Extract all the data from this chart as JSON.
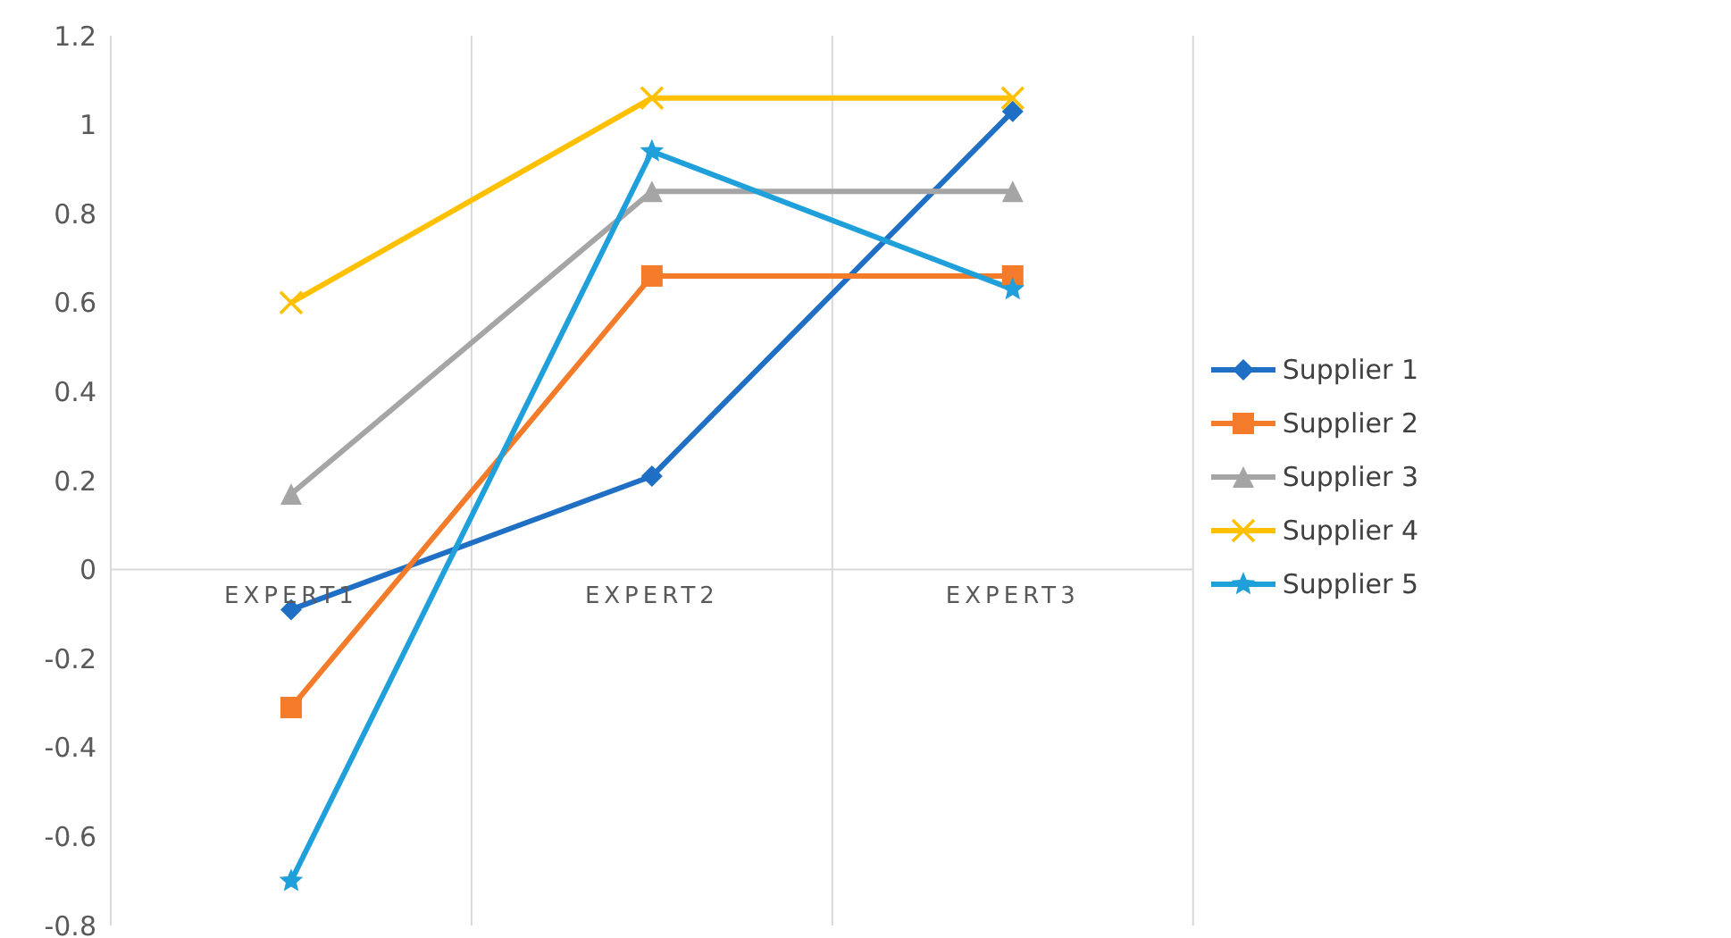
{
  "chart_data": {
    "type": "line",
    "categories": [
      "EXPERT1",
      "EXPERT2",
      "EXPERT3"
    ],
    "series": [
      {
        "name": "Supplier 1",
        "color": "#1f6fc5",
        "marker": "diamond",
        "values": [
          -0.09,
          0.21,
          1.03
        ]
      },
      {
        "name": "Supplier 2",
        "color": "#f47b2a",
        "marker": "square",
        "values": [
          -0.31,
          0.66,
          0.66
        ]
      },
      {
        "name": "Supplier 3",
        "color": "#a5a5a5",
        "marker": "triangle",
        "values": [
          0.17,
          0.85,
          0.85
        ]
      },
      {
        "name": "Supplier 4",
        "color": "#ffc000",
        "marker": "cross",
        "values": [
          0.6,
          1.06,
          1.06
        ]
      },
      {
        "name": "Supplier 5",
        "color": "#1fa0db",
        "marker": "star",
        "values": [
          -0.7,
          0.94,
          0.63
        ]
      }
    ],
    "ylim": [
      -0.8,
      1.2
    ],
    "yticks": [
      -0.8,
      -0.6,
      -0.4,
      -0.2,
      0,
      0.2,
      0.4,
      0.6,
      0.8,
      1,
      1.2
    ],
    "grid": "x",
    "legend": "right",
    "line_style": "solid"
  }
}
